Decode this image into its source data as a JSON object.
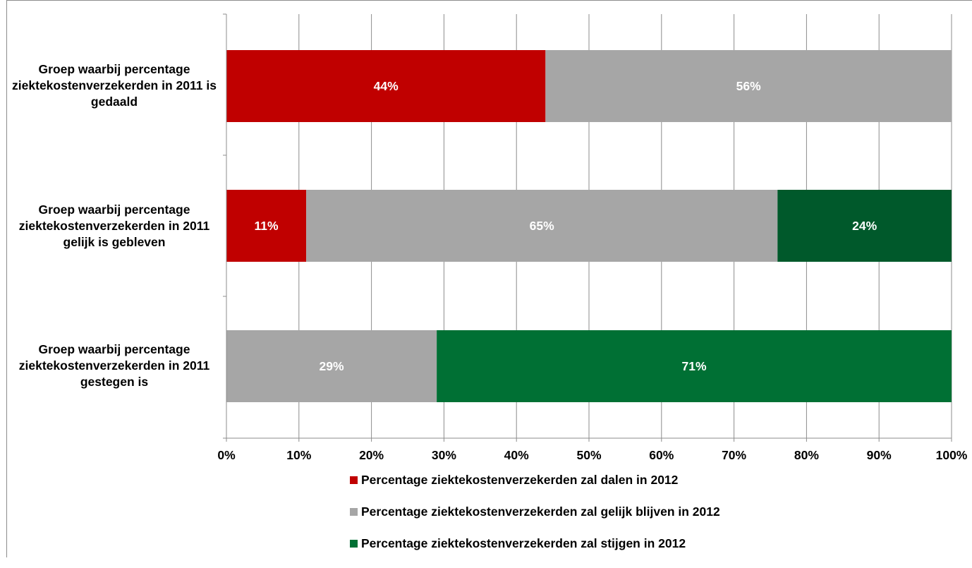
{
  "chart_data": {
    "type": "bar",
    "orientation": "horizontal",
    "stacked": true,
    "categories": [
      "Groep waarbij percentage ziektekostenverzekerden in 2011 is gedaald",
      "Groep waarbij percentage ziektekostenverzekerden in 2011 gelijk is gebleven",
      "Groep waarbij percentage ziektekostenverzekerden in 2011 gestegen is"
    ],
    "series": [
      {
        "name": "Percentage ziektekostenverzekerden zal dalen in 2012",
        "color": "#c00000",
        "values": [
          44,
          11,
          0
        ],
        "labels": [
          "44%",
          "11%",
          ""
        ]
      },
      {
        "name": "Percentage ziektekostenverzekerden zal gelijk blijven in 2012",
        "color": "#a6a6a6",
        "values": [
          56,
          65,
          29
        ],
        "labels": [
          "56%",
          "65%",
          "29%"
        ]
      },
      {
        "name": "Percentage ziektekostenverzekerden zal stijgen in 2012",
        "colors": [
          "#00592b",
          "#00592b",
          "#007034"
        ],
        "values": [
          0,
          24,
          71
        ],
        "labels": [
          "",
          "24%",
          "71%"
        ]
      }
    ],
    "xlim": [
      0,
      100
    ],
    "xticks": [
      "0%",
      "10%",
      "20%",
      "30%",
      "40%",
      "50%",
      "60%",
      "70%",
      "80%",
      "90%",
      "100%"
    ],
    "grid": true,
    "legend": "bottom"
  }
}
